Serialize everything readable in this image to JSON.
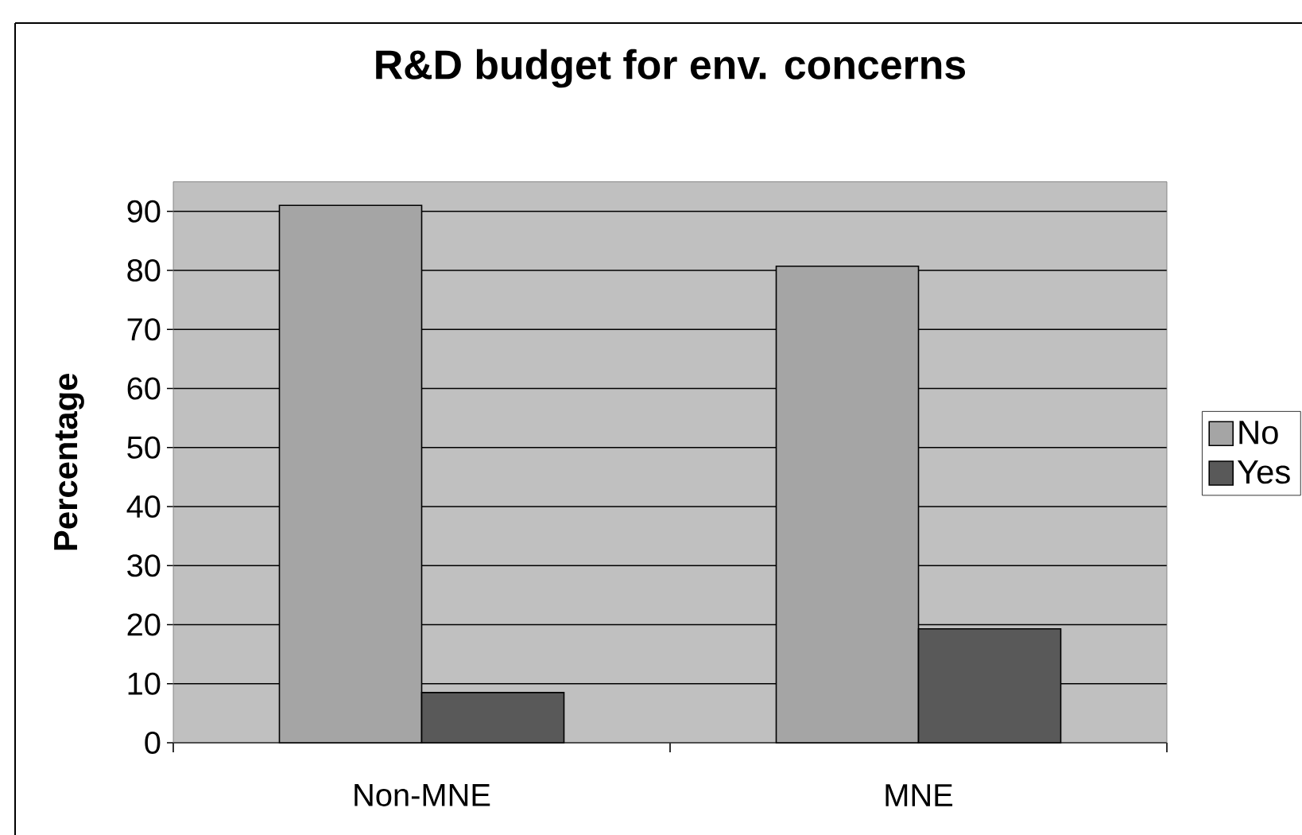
{
  "chart_data": {
    "type": "bar",
    "title": "R&D budget for env. concerns",
    "ylabel": "Percentage",
    "categories": [
      "Non-MNE",
      "MNE"
    ],
    "series": [
      {
        "name": "No",
        "color": "#a5a5a5",
        "values": [
          91,
          80.7
        ]
      },
      {
        "name": "Yes",
        "color": "#595959",
        "values": [
          8.5,
          19.3
        ]
      }
    ],
    "ylim": [
      0,
      95
    ],
    "yticks": [
      0,
      10,
      20,
      30,
      40,
      50,
      60,
      70,
      80,
      90
    ],
    "grid": "y",
    "legend": "right"
  }
}
